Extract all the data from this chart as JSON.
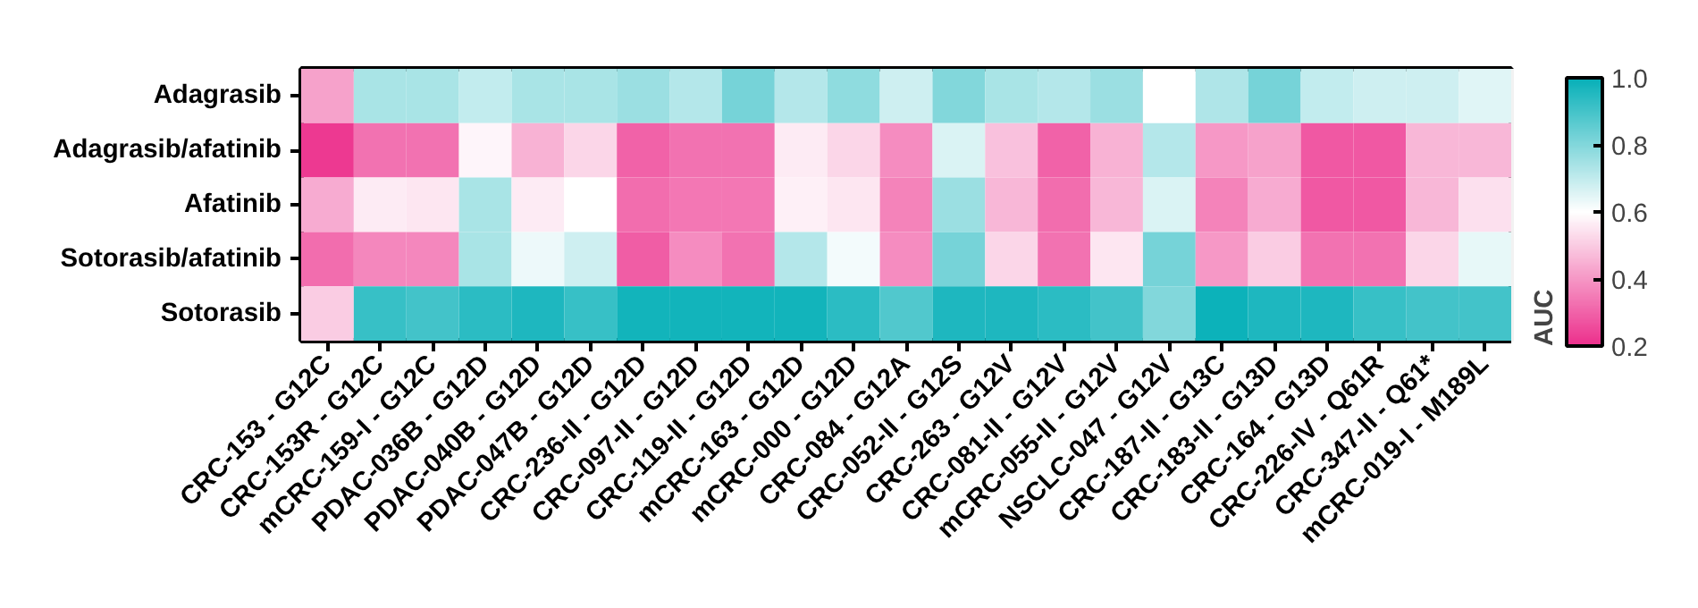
{
  "chart_data": {
    "type": "heatmap",
    "clabel": "AUC",
    "clim": [
      0.2,
      1.0
    ],
    "cticks": [
      0.2,
      0.4,
      0.6,
      0.8,
      {
        "value": 1,
        "label": "1.0"
      }
    ],
    "categories": [
      "CRC-153 - G12C",
      "CRC-153R - G12C",
      "mCRC-159-I - G12C",
      "PDAC-036B - G12D",
      "PDAC-040B - G12D",
      "PDAC-047B - G12D",
      "CRC-236-II - G12D",
      "CRC-097-II - G12D",
      "CRC-119-II - G12D",
      "mCRC-163 - G12D",
      "mCRC-000 - G12D",
      "CRC-084 - G12A",
      "CRC-052-II - G12S",
      "CRC-263 - G12V",
      "CRC-081-II - G12V",
      "mCRC-055-II - G12V",
      "NSCLC-047 - G12V",
      "CRC-187-II - G13C",
      "CRC-183-II - G13D",
      "CRC-164 - G13D",
      "CRC-226-IV - Q61R",
      "CRC-347-II - Q61*",
      "mCRC-019-I - M189L"
    ],
    "y_categories": [
      "Adagrasib",
      "Adagrasib/afatinib",
      "Afatinib",
      "Sotorasib/afatinib",
      "Sotorasib"
    ],
    "cells": [
      [
        0.42,
        0.74,
        0.74,
        0.7,
        0.74,
        0.74,
        0.76,
        0.72,
        0.82,
        0.72,
        0.78,
        0.68,
        0.8,
        0.74,
        0.72,
        0.76,
        0.6,
        0.73,
        0.82,
        0.7,
        0.68,
        0.68,
        0.65
      ],
      [
        0.22,
        0.33,
        0.33,
        0.58,
        0.45,
        0.52,
        0.3,
        0.33,
        0.33,
        0.56,
        0.52,
        0.38,
        0.66,
        0.48,
        0.3,
        0.45,
        0.72,
        0.4,
        0.42,
        0.28,
        0.28,
        0.46,
        0.46
      ],
      [
        0.44,
        0.56,
        0.55,
        0.74,
        0.56,
        0.6,
        0.32,
        0.34,
        0.34,
        0.57,
        0.55,
        0.36,
        0.76,
        0.46,
        0.32,
        0.46,
        0.66,
        0.36,
        0.44,
        0.28,
        0.28,
        0.46,
        0.54
      ],
      [
        0.32,
        0.37,
        0.37,
        0.74,
        0.63,
        0.68,
        0.29,
        0.38,
        0.33,
        0.72,
        0.62,
        0.38,
        0.82,
        0.52,
        0.33,
        0.55,
        0.82,
        0.4,
        0.5,
        0.33,
        0.33,
        0.52,
        0.64
      ],
      [
        0.5,
        0.92,
        0.9,
        0.94,
        0.96,
        0.92,
        0.98,
        0.98,
        0.98,
        0.98,
        0.94,
        0.88,
        0.96,
        0.96,
        0.94,
        0.9,
        0.8,
        0.99,
        0.96,
        0.96,
        0.92,
        0.9,
        0.9
      ]
    ]
  }
}
